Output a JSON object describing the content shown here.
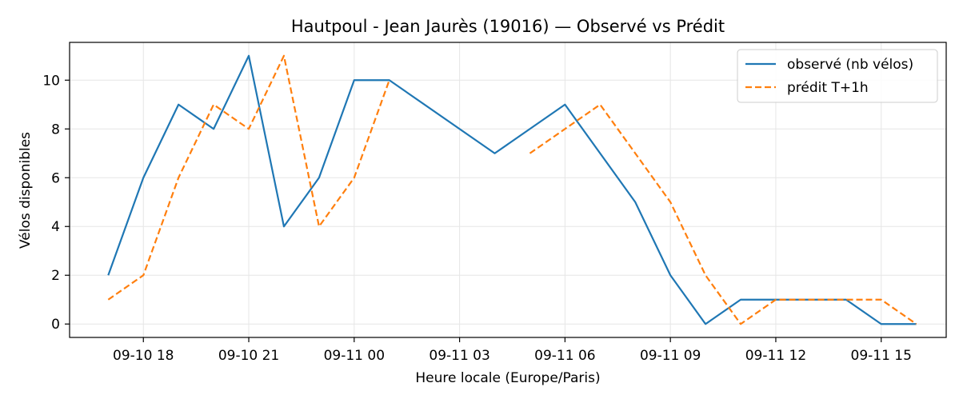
{
  "chart_data": {
    "type": "line",
    "title": "Hautpoul - Jean Jaurès (19016) — Observé vs Prédit",
    "xlabel": "Heure locale (Europe/Paris)",
    "ylabel": "Vélos disponibles",
    "xlim": [
      "2025-09-10 15:54",
      "2025-09-11 16:51"
    ],
    "ylim": [
      -0.55,
      11.55
    ],
    "x_ticks": [
      {
        "label": "09-10 18",
        "x": "2025-09-10 18:00"
      },
      {
        "label": "09-10 21",
        "x": "2025-09-10 21:00"
      },
      {
        "label": "09-11 00",
        "x": "2025-09-11 00:00"
      },
      {
        "label": "09-11 03",
        "x": "2025-09-11 03:00"
      },
      {
        "label": "09-11 06",
        "x": "2025-09-11 06:00"
      },
      {
        "label": "09-11 09",
        "x": "2025-09-11 09:00"
      },
      {
        "label": "09-11 12",
        "x": "2025-09-11 12:00"
      },
      {
        "label": "09-11 15",
        "x": "2025-09-11 15:00"
      }
    ],
    "y_ticks": [
      0,
      2,
      4,
      6,
      8,
      10
    ],
    "grid": true,
    "legend_position": "top-right",
    "series": [
      {
        "name": "observé (nb vélos)",
        "color": "#1f77b4",
        "style": "solid",
        "points": [
          [
            "2025-09-10 17:00",
            2
          ],
          [
            "2025-09-10 18:00",
            6
          ],
          [
            "2025-09-10 19:00",
            9
          ],
          [
            "2025-09-10 20:00",
            8
          ],
          [
            "2025-09-10 21:00",
            11
          ],
          [
            "2025-09-10 22:00",
            4
          ],
          [
            "2025-09-10 23:00",
            6
          ],
          [
            "2025-09-11 00:00",
            10
          ],
          [
            "2025-09-11 01:00",
            10
          ],
          [
            "2025-09-11 04:00",
            7
          ],
          [
            "2025-09-11 06:00",
            9
          ],
          [
            "2025-09-11 08:00",
            5
          ],
          [
            "2025-09-11 09:00",
            2
          ],
          [
            "2025-09-11 10:00",
            0
          ],
          [
            "2025-09-11 11:00",
            1
          ],
          [
            "2025-09-11 12:00",
            1
          ],
          [
            "2025-09-11 13:00",
            1
          ],
          [
            "2025-09-11 14:00",
            1
          ],
          [
            "2025-09-11 15:00",
            0
          ],
          [
            "2025-09-11 16:00",
            0
          ]
        ]
      },
      {
        "name": "prédit T+1h",
        "color": "#ff7f0e",
        "style": "dashed",
        "segments": [
          [
            [
              "2025-09-10 17:00",
              1
            ],
            [
              "2025-09-10 18:00",
              2
            ],
            [
              "2025-09-10 19:00",
              6
            ],
            [
              "2025-09-10 20:00",
              9
            ],
            [
              "2025-09-10 21:00",
              8
            ],
            [
              "2025-09-10 22:00",
              11
            ],
            [
              "2025-09-10 23:00",
              4
            ],
            [
              "2025-09-11 00:00",
              6
            ],
            [
              "2025-09-11 01:00",
              10
            ]
          ],
          [
            [
              "2025-09-11 05:00",
              7
            ],
            [
              "2025-09-11 06:00",
              8
            ],
            [
              "2025-09-11 07:00",
              9
            ],
            [
              "2025-09-11 08:00",
              7
            ],
            [
              "2025-09-11 09:00",
              5
            ],
            [
              "2025-09-11 10:00",
              2
            ],
            [
              "2025-09-11 11:00",
              0
            ],
            [
              "2025-09-11 12:00",
              1
            ],
            [
              "2025-09-11 13:00",
              1
            ],
            [
              "2025-09-11 14:00",
              1
            ],
            [
              "2025-09-11 15:00",
              1
            ],
            [
              "2025-09-11 16:00",
              0
            ]
          ]
        ]
      }
    ]
  }
}
